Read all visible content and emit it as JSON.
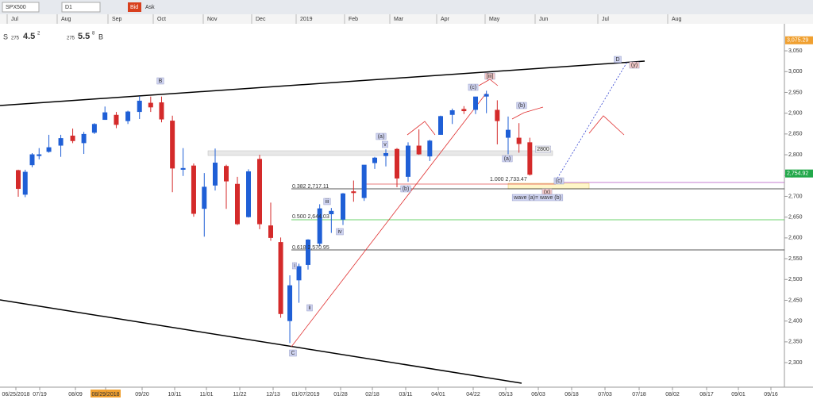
{
  "toolbar": {
    "symbol": "SPX500",
    "timeframe": "D1",
    "bid": "Bid",
    "ask": "Ask"
  },
  "quote": {
    "sell": "S",
    "sell_prefix": "275",
    "sell_main": "4.5",
    "sell_pip": "2",
    "buy_prefix": "275",
    "buy_main": "5.5",
    "buy_pip": "8",
    "buy": "B"
  },
  "chart_data": {
    "type": "candlestick",
    "up_color": "#1f5fd6",
    "down_color": "#d42a2a",
    "x": [
      "2018-06-25",
      "2018-07-02",
      "2018-07-09",
      "2018-07-16",
      "2018-07-23",
      "2018-07-30",
      "2018-08-06",
      "2018-08-13",
      "2018-08-20",
      "2018-08-27",
      "2018-09-03",
      "2018-09-10",
      "2018-09-17",
      "2018-09-24",
      "2018-10-01",
      "2018-10-08",
      "2018-10-15",
      "2018-10-22",
      "2018-10-29",
      "2018-11-05",
      "2018-11-12",
      "2018-11-19",
      "2018-11-26",
      "2018-12-03",
      "2018-12-10",
      "2018-12-17",
      "2018-12-24",
      "2018-12-31",
      "2019-01-07",
      "2019-01-14",
      "2019-01-21",
      "2019-01-28",
      "2019-02-04",
      "2019-02-11",
      "2019-02-18",
      "2019-02-25",
      "2019-03-04",
      "2019-03-11",
      "2019-03-18",
      "2019-03-25",
      "2019-04-01",
      "2019-04-08",
      "2019-04-15",
      "2019-04-22",
      "2019-04-29",
      "2019-05-06",
      "2019-05-13",
      "2019-05-20",
      "2019-05-27"
    ],
    "open": [
      2763,
      2704,
      2775,
      2797,
      2807,
      2822,
      2846,
      2828,
      2853,
      2884,
      2896,
      2881,
      2903,
      2925,
      2926,
      2882,
      2764,
      2774,
      2670,
      2726,
      2773,
      2730,
      2650,
      2790,
      2630,
      2590,
      2400,
      2498,
      2535,
      2586,
      2657,
      2644,
      2712,
      2696,
      2780,
      2797,
      2814,
      2747,
      2822,
      2796,
      2848,
      2896,
      2910,
      2908,
      2940,
      2908,
      2841,
      2841,
      2830
    ],
    "high": [
      2764,
      2764,
      2804,
      2816,
      2848,
      2848,
      2863,
      2855,
      2876,
      2916,
      2903,
      2906,
      2941,
      2940,
      2940,
      2894,
      2816,
      2779,
      2756,
      2815,
      2776,
      2747,
      2765,
      2800,
      2685,
      2601,
      2510,
      2538,
      2597,
      2681,
      2672,
      2708,
      2738,
      2775,
      2795,
      2813,
      2816,
      2830,
      2861,
      2836,
      2894,
      2911,
      2917,
      2939,
      2954,
      2931,
      2892,
      2876,
      2841
    ],
    "low": [
      2699,
      2698,
      2770,
      2789,
      2805,
      2795,
      2828,
      2802,
      2850,
      2884,
      2864,
      2874,
      2886,
      2903,
      2878,
      2710,
      2749,
      2651,
      2603,
      2714,
      2670,
      2631,
      2649,
      2621,
      2593,
      2408,
      2347,
      2444,
      2524,
      2580,
      2612,
      2631,
      2687,
      2689,
      2766,
      2772,
      2722,
      2735,
      2800,
      2785,
      2848,
      2874,
      2898,
      2898,
      2900,
      2825,
      2801,
      2805,
      2750
    ],
    "close": [
      2718,
      2759,
      2801,
      2801,
      2818,
      2840,
      2833,
      2850,
      2874,
      2902,
      2872,
      2904,
      2930,
      2914,
      2885,
      2767,
      2768,
      2658,
      2723,
      2781,
      2736,
      2633,
      2760,
      2633,
      2600,
      2417,
      2486,
      2532,
      2596,
      2671,
      2665,
      2707,
      2708,
      2776,
      2793,
      2804,
      2743,
      2822,
      2801,
      2834,
      2893,
      2907,
      2905,
      2940,
      2946,
      2881,
      2860,
      2826,
      2752
    ],
    "ylim": [
      2241,
      3115
    ],
    "yticks": [
      {
        "value": 2300,
        "label": "2,300"
      },
      {
        "value": 2350,
        "label": "2,350"
      },
      {
        "value": 2400,
        "label": "2,400"
      },
      {
        "value": 2450,
        "label": "2,450"
      },
      {
        "value": 2500,
        "label": "2,500"
      },
      {
        "value": 2550,
        "label": "2,550"
      },
      {
        "value": 2600,
        "label": "2,600"
      },
      {
        "value": 2650,
        "label": "2,650"
      },
      {
        "value": 2700,
        "label": "2,700"
      },
      {
        "value": 2750,
        "label": "2,750"
      },
      {
        "value": 2800,
        "label": "2,800"
      },
      {
        "value": 2850,
        "label": "2,850"
      },
      {
        "value": 2900,
        "label": "2,900"
      },
      {
        "value": 2950,
        "label": "2,950"
      },
      {
        "value": 3000,
        "label": "3,000"
      },
      {
        "value": 3050,
        "label": "3,050"
      }
    ],
    "price_labels": [
      {
        "value": 3075.29,
        "label": "3,075.29"
      },
      {
        "value": 2754.92,
        "label": "2,754.92"
      }
    ],
    "xticks": [
      {
        "value": "2018-06-25",
        "label": "06/25/2018"
      },
      {
        "value": "2018-07-19",
        "label": "07/19"
      },
      {
        "value": "2018-08-09",
        "label": "08/09"
      },
      {
        "value": "2018-08-29",
        "label": "08/29/2018"
      },
      {
        "value": "2018-09-20",
        "label": "09/20"
      },
      {
        "value": "2018-10-11",
        "label": "10/11"
      },
      {
        "value": "2018-11-01",
        "label": "11/01"
      },
      {
        "value": "2018-11-22",
        "label": "11/22"
      },
      {
        "value": "2018-12-13",
        "label": "12/13"
      },
      {
        "value": "2019-01-07",
        "label": "01/07/2019"
      },
      {
        "value": "2019-01-28",
        "label": "01/28"
      },
      {
        "value": "2019-02-18",
        "label": "02/18"
      },
      {
        "value": "2019-03-11",
        "label": "03/11"
      },
      {
        "value": "2019-04-01",
        "label": "04/01"
      },
      {
        "value": "2019-04-22",
        "label": "04/22"
      },
      {
        "value": "2019-05-13",
        "label": "05/13"
      },
      {
        "value": "2019-06-03",
        "label": "06/03"
      },
      {
        "value": "2019-06-18",
        "label": "06/18"
      },
      {
        "value": "2019-07-03",
        "label": "07/03"
      },
      {
        "value": "2019-07-18",
        "label": "07/18"
      },
      {
        "value": "2019-08-02",
        "label": "08/02"
      },
      {
        "value": "2019-08-17",
        "label": "08/17"
      },
      {
        "value": "2019-09-01",
        "label": "09/01"
      },
      {
        "value": "2019-09-16",
        "label": "09/16"
      }
    ],
    "top_labels": [
      "Jul",
      "Aug",
      "Sep",
      "Oct",
      "Nov",
      "Dec",
      "2019",
      "Feb",
      "Mar",
      "Apr",
      "May",
      "Jun",
      "Jul",
      "Aug"
    ],
    "annotations": [
      "B",
      "C",
      "(a)",
      "v",
      "(b)",
      "iii",
      "iv",
      "i",
      "ii",
      "(c)",
      "[iii]",
      "(b)",
      "(a)",
      "(c)",
      "(x)",
      "(y)",
      "D",
      "wave (a)= wave (b)",
      "2800",
      "0.382 2,717.11",
      "0.500 2,644.03",
      "0.618 2,570.95",
      "1.000 2,733.47"
    ]
  }
}
